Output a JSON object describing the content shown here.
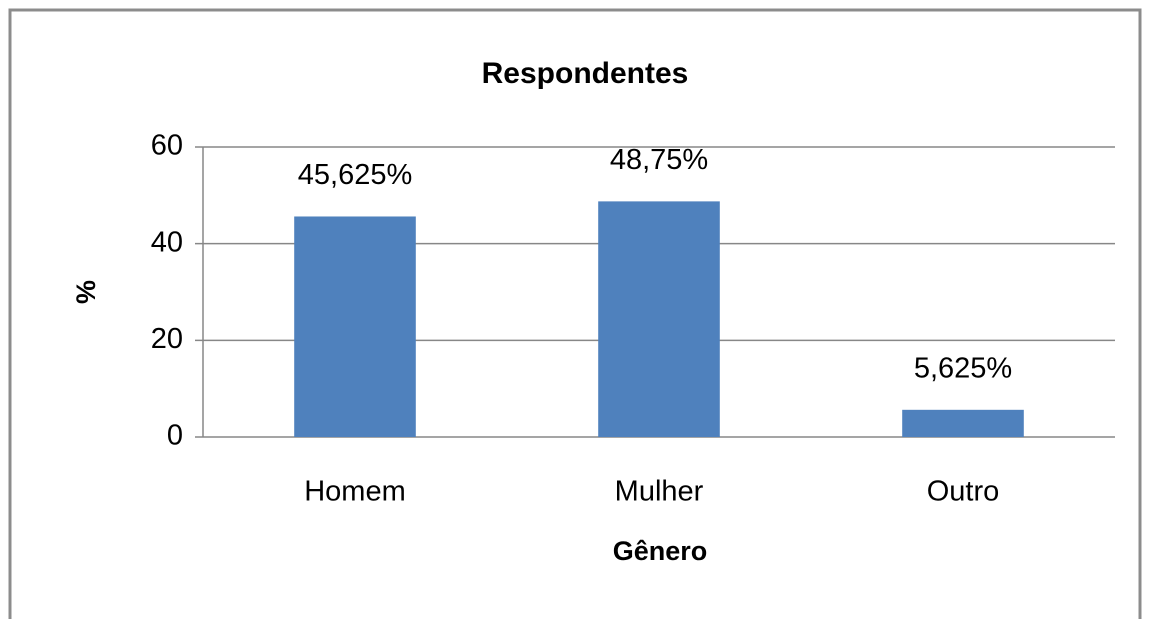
{
  "chart_data": {
    "type": "bar",
    "title": "Respondentes",
    "x_label": "Gênero",
    "y_label": "%",
    "categories": [
      "Homem",
      "Mulher",
      "Outro"
    ],
    "values": [
      45.625,
      48.75,
      5.625
    ],
    "value_labels": [
      "45,625%",
      "48,75%",
      "5,625%"
    ],
    "color": "#4f81bd",
    "ylim": [
      0,
      60
    ],
    "yticks": [
      0,
      20,
      40,
      60
    ],
    "grid": true
  }
}
